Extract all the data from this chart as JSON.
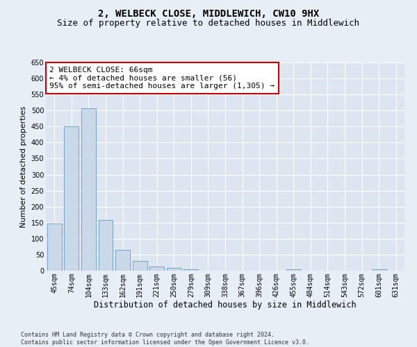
{
  "title": "2, WELBECK CLOSE, MIDDLEWICH, CW10 9HX",
  "subtitle": "Size of property relative to detached houses in Middlewich",
  "xlabel": "Distribution of detached houses by size in Middlewich",
  "ylabel": "Number of detached properties",
  "categories": [
    "45sqm",
    "74sqm",
    "104sqm",
    "133sqm",
    "162sqm",
    "191sqm",
    "221sqm",
    "250sqm",
    "279sqm",
    "309sqm",
    "338sqm",
    "367sqm",
    "396sqm",
    "426sqm",
    "455sqm",
    "484sqm",
    "514sqm",
    "543sqm",
    "572sqm",
    "601sqm",
    "631sqm"
  ],
  "values": [
    148,
    450,
    507,
    158,
    65,
    30,
    13,
    8,
    5,
    0,
    0,
    0,
    0,
    0,
    5,
    0,
    0,
    0,
    0,
    5,
    0
  ],
  "bar_color": "#c9d9ea",
  "bar_edge_color": "#6699bb",
  "annotation_text": "2 WELBECK CLOSE: 66sqm\n← 4% of detached houses are smaller (56)\n95% of semi-detached houses are larger (1,305) →",
  "annotation_box_color": "#ffffff",
  "annotation_box_edge_color": "#cc0000",
  "ylim": [
    0,
    650
  ],
  "yticks": [
    0,
    50,
    100,
    150,
    200,
    250,
    300,
    350,
    400,
    450,
    500,
    550,
    600,
    650
  ],
  "footnote": "Contains HM Land Registry data © Crown copyright and database right 2024.\nContains public sector information licensed under the Open Government Licence v3.0.",
  "background_color": "#e8eef6",
  "plot_background_color": "#dde6f0",
  "grid_color": "#ffffff",
  "title_fontsize": 10,
  "subtitle_fontsize": 9,
  "annotation_fontsize": 8,
  "tick_fontsize": 7,
  "ylabel_fontsize": 8,
  "xlabel_fontsize": 8.5,
  "footnote_fontsize": 6
}
